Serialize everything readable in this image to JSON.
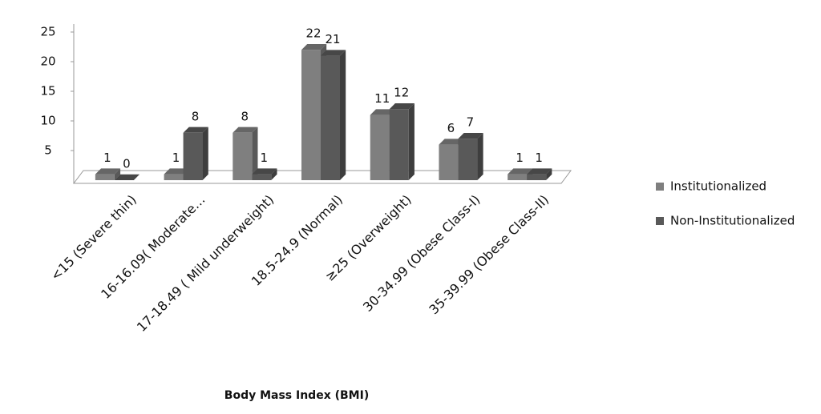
{
  "chart_data": {
    "type": "bar3d",
    "x_label": "Body Mass Index (BMI)",
    "categories": [
      "<15 (Severe thin)",
      "16-16.09( Moderate…",
      "17-18.49 ( Mild underweight)",
      "18.5-24.9 (Normal)",
      "≥25 (Overweight)",
      "30-34.99 (Obese Class-I)",
      "35-39.99 (Obese Class-II)"
    ],
    "series": [
      {
        "name": "Institutionalized",
        "color": "#7f7f7f",
        "values": [
          1,
          1,
          8,
          22,
          11,
          6,
          1
        ]
      },
      {
        "name": "Non-Institutionalized",
        "color": "#595959",
        "values": [
          0,
          8,
          1,
          21,
          12,
          7,
          1
        ]
      }
    ],
    "ylim": [
      0,
      25
    ],
    "yticks": [
      5,
      10,
      15,
      20,
      25
    ],
    "grid": false,
    "legend": "right"
  }
}
